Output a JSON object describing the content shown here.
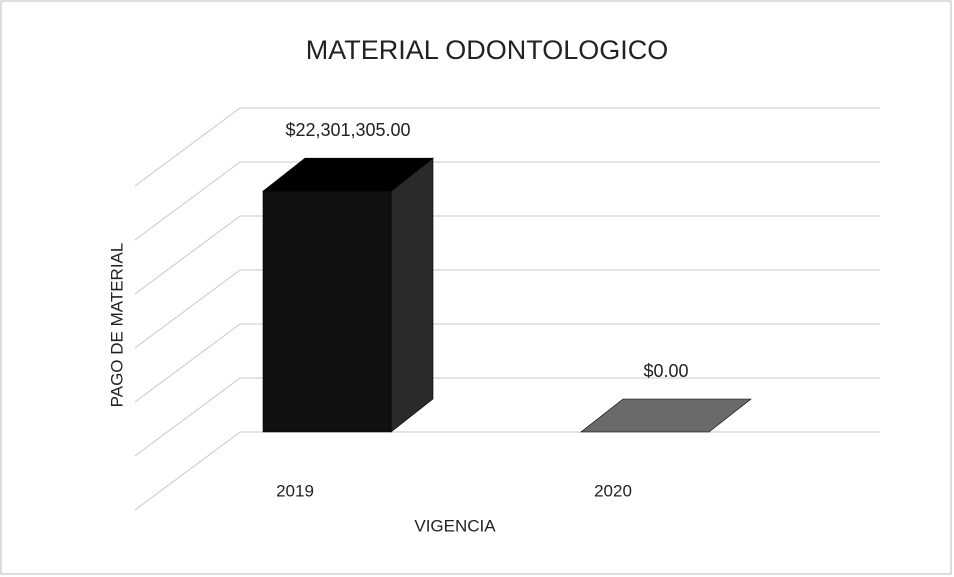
{
  "chart_data": {
    "type": "bar3d",
    "title": "MATERIAL ODONTOLOGICO",
    "x_label": "VIGENCIA",
    "y_label": "PAGO DE MATERIAL",
    "categories": [
      "2019",
      "2020"
    ],
    "values": [
      22301305,
      0
    ],
    "value_labels": [
      "$22,301,305.00",
      "$0.00"
    ],
    "colors": [
      "#111111",
      "#6a6a6a"
    ],
    "ylim": [
      0,
      30000000
    ],
    "yticks": [
      0,
      5000000,
      10000000,
      15000000,
      20000000,
      25000000,
      30000000
    ],
    "grid": true
  }
}
